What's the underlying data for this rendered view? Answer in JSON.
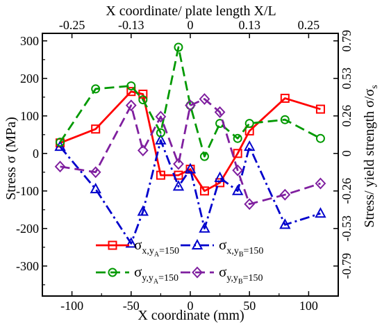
{
  "chart_data": {
    "type": "line",
    "xlabel": "X coordinate (mm)",
    "ylabel": "Stress σ (MPa)",
    "x2label": "X coordinate/ plate length X/L",
    "y2label": "Stress/ yield strength σ/σ",
    "y2label_sub": "s",
    "xlim": [
      -125,
      125
    ],
    "ylim": [
      -380,
      320
    ],
    "xticks": [
      -100,
      -50,
      0,
      50,
      100
    ],
    "yticks": [
      -300,
      -200,
      -100,
      0,
      100,
      200,
      300
    ],
    "x2ticks": [
      {
        "label": "-0.25",
        "x": -100
      },
      {
        "label": "-0.13",
        "x": -50
      },
      {
        "label": "0",
        "x": 0
      },
      {
        "label": "0.13",
        "x": 50
      },
      {
        "label": "0.25",
        "x": 100
      }
    ],
    "y2ticks": [
      {
        "label": "-0.79",
        "y": -300
      },
      {
        "label": "-0.53",
        "y": -200
      },
      {
        "label": "-0.26",
        "y": -100
      },
      {
        "label": "0",
        "y": 0
      },
      {
        "label": "0.26",
        "y": 100
      },
      {
        "label": "0.53",
        "y": 200
      },
      {
        "label": "0.79",
        "y": 300
      }
    ],
    "grid": false,
    "legend_position": "bottom-center inside plot",
    "series": [
      {
        "name": "σx,yA=150",
        "legend_main": "σ",
        "legend_sub": "x,y",
        "legend_subsub": "A",
        "legend_tail": "=150",
        "color": "#ff0000",
        "dash": "solid",
        "marker": "square",
        "points": [
          [
            -110,
            28
          ],
          [
            -80,
            65
          ],
          [
            -50,
            165
          ],
          [
            -40,
            158
          ],
          [
            -25,
            -58
          ],
          [
            -10,
            -58
          ],
          [
            0,
            -42
          ],
          [
            12,
            -100
          ],
          [
            25,
            -78
          ],
          [
            40,
            0
          ],
          [
            50,
            60
          ],
          [
            80,
            147
          ],
          [
            110,
            118
          ]
        ]
      },
      {
        "name": "σx,yB=150",
        "legend_main": "σ",
        "legend_sub": "x,y",
        "legend_subsub": "B",
        "legend_tail": "=150",
        "color": "#0000cc",
        "dash": "dashdot",
        "marker": "triangle",
        "points": [
          [
            -110,
            18
          ],
          [
            -80,
            -95
          ],
          [
            -50,
            -240
          ],
          [
            -40,
            -155
          ],
          [
            -25,
            35
          ],
          [
            -10,
            -88
          ],
          [
            0,
            -42
          ],
          [
            12,
            -200
          ],
          [
            25,
            -65
          ],
          [
            40,
            -100
          ],
          [
            50,
            18
          ],
          [
            80,
            -190
          ],
          [
            110,
            -160
          ]
        ]
      },
      {
        "name": "σy,yA=150",
        "legend_main": "σ",
        "legend_sub": "y,y",
        "legend_subsub": "A",
        "legend_tail": "=150",
        "color": "#009900",
        "dash": "dashed",
        "marker": "circle",
        "points": [
          [
            -110,
            30
          ],
          [
            -80,
            172
          ],
          [
            -50,
            180
          ],
          [
            -40,
            143
          ],
          [
            -25,
            55
          ],
          [
            -10,
            283
          ],
          [
            0,
            128
          ],
          [
            12,
            -8
          ],
          [
            25,
            80
          ],
          [
            40,
            40
          ],
          [
            50,
            80
          ],
          [
            80,
            90
          ],
          [
            110,
            40
          ]
        ]
      },
      {
        "name": "σy,yB=150",
        "legend_main": "σ",
        "legend_sub": "y,y",
        "legend_subsub": "B",
        "legend_tail": "=150",
        "color": "#7f1f9f",
        "dash": "dashed",
        "marker": "diamond",
        "points": [
          [
            -110,
            -35
          ],
          [
            -80,
            -50
          ],
          [
            -50,
            128
          ],
          [
            -40,
            8
          ],
          [
            -25,
            98
          ],
          [
            -10,
            -28
          ],
          [
            0,
            128
          ],
          [
            12,
            145
          ],
          [
            25,
            110
          ],
          [
            40,
            -45
          ],
          [
            50,
            -135
          ],
          [
            80,
            -110
          ],
          [
            110,
            -80
          ]
        ]
      }
    ]
  }
}
